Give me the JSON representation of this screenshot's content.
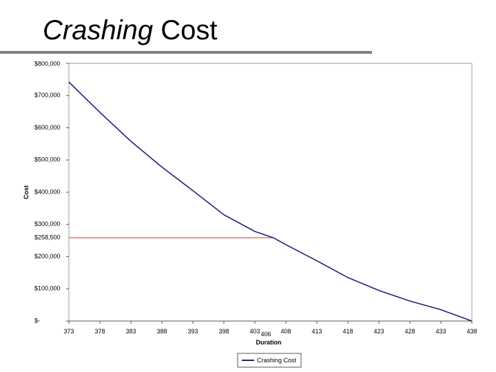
{
  "slide": {
    "title_italic": "Crashing",
    "title_rest": " Cost"
  },
  "chart_data": {
    "type": "line",
    "title": "",
    "xlabel": "Duration",
    "ylabel": "Cost",
    "x_ticks": [
      373,
      378,
      383,
      388,
      393,
      398,
      403,
      408,
      413,
      418,
      423,
      428,
      433,
      438
    ],
    "y_ticks": [
      0,
      100000,
      200000,
      300000,
      400000,
      500000,
      600000,
      700000,
      800000
    ],
    "y_tick_labels": [
      "$-",
      "$100,000",
      "$200,000",
      "$300,000",
      "$400,000",
      "$500,000",
      "$600,000",
      "$700,000",
      "$800,000"
    ],
    "xlim": [
      373,
      438
    ],
    "ylim": [
      0,
      800000
    ],
    "grid": false,
    "legend_position": "bottom-center",
    "series": [
      {
        "name": "Crashing Cost",
        "color": "#1f1f7a",
        "x": [
          373,
          378,
          383,
          388,
          393,
          398,
          403,
          406,
          408,
          413,
          418,
          423,
          428,
          433,
          438
        ],
        "y": [
          742000,
          648000,
          558000,
          478000,
          405000,
          330000,
          278000,
          258500,
          237000,
          187000,
          135000,
          95000,
          62000,
          35000,
          0
        ]
      }
    ],
    "annotation": {
      "x": 406,
      "y": 258500,
      "x_label": "406",
      "y_label": "$258,500",
      "color": "#c0392b"
    }
  }
}
